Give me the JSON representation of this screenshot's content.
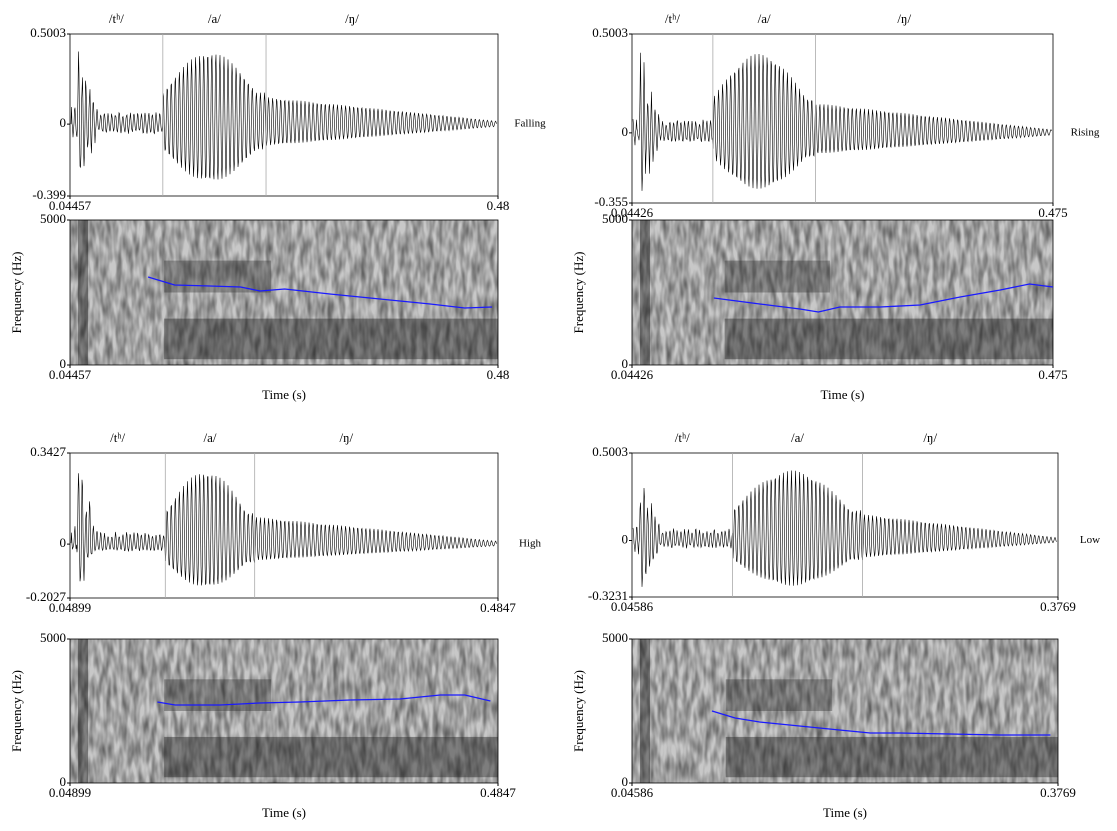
{
  "chart_data": [
    {
      "type": "waveform",
      "title": "Falling",
      "segments": [
        "/tʰ/",
        "/a/",
        "/ŋ/"
      ],
      "boundaries": [
        0.139,
        0.244
      ],
      "xlim": [
        0.04457,
        0.48
      ],
      "xticks": [
        0.04457,
        0.48
      ],
      "ylim": [
        -0.399,
        0.5003
      ],
      "yticks": [
        -0.399,
        0,
        0.5003
      ]
    },
    {
      "type": "spectrogram",
      "ylabel": "Frequency (Hz)",
      "xlabel": "Time (s)",
      "xlim": [
        0.04457,
        0.48
      ],
      "xticks": [
        0.04457,
        0.48
      ],
      "ylim": [
        0,
        5000
      ],
      "yticks": [
        0,
        5000
      ],
      "x": [
        0.124,
        0.151,
        0.187,
        0.218,
        0.238,
        0.263,
        0.309,
        0.36,
        0.411,
        0.446,
        0.474
      ],
      "series": [
        {
          "color": "#1a1aff",
          "values": [
            3034,
            2759,
            2724,
            2690,
            2552,
            2621,
            2448,
            2276,
            2103,
            1966,
            2000
          ]
        }
      ]
    },
    {
      "type": "waveform",
      "title": "Rising",
      "segments": [
        "/tʰ/",
        "/a/",
        "/ŋ/"
      ],
      "boundaries": [
        0.127,
        0.232
      ],
      "xlim": [
        0.04426,
        0.475
      ],
      "xticks": [
        0.04426,
        0.475
      ],
      "ylim": [
        -0.355,
        0.5003
      ],
      "yticks": [
        -0.355,
        0,
        0.5003
      ]
    },
    {
      "type": "spectrogram",
      "ylabel": "Frequency (Hz)",
      "xlabel": "Time (s)",
      "xlim": [
        0.04426,
        0.475
      ],
      "xticks": [
        0.04426,
        0.475
      ],
      "ylim": [
        0,
        5000
      ],
      "yticks": [
        0,
        5000
      ],
      "x": [
        0.128,
        0.175,
        0.216,
        0.235,
        0.257,
        0.298,
        0.339,
        0.38,
        0.421,
        0.451,
        0.475
      ],
      "series": [
        {
          "color": "#1a1aff",
          "values": [
            2310,
            2103,
            1931,
            1828,
            2000,
            2000,
            2069,
            2345,
            2586,
            2793,
            2690
          ]
        }
      ]
    },
    {
      "type": "waveform",
      "title": "High",
      "segments": [
        "/tʰ/",
        "/a/",
        "/ŋ/"
      ],
      "boundaries": [
        0.146,
        0.237
      ],
      "xlim": [
        0.04899,
        0.4847
      ],
      "xticks": [
        0.04899,
        0.4847
      ],
      "ylim": [
        -0.2027,
        0.3427
      ],
      "yticks": [
        -0.2027,
        0,
        0.3427
      ]
    },
    {
      "type": "spectrogram",
      "ylabel": "Frequency (Hz)",
      "xlabel": "Time (s)",
      "xlim": [
        0.04899,
        0.4847
      ],
      "xticks": [
        0.04899,
        0.4847
      ],
      "ylim": [
        0,
        5000
      ],
      "yticks": [
        0,
        5000
      ],
      "x": [
        0.138,
        0.156,
        0.202,
        0.242,
        0.283,
        0.334,
        0.385,
        0.426,
        0.451,
        0.477
      ],
      "series": [
        {
          "color": "#1a1aff",
          "values": [
            2813,
            2708,
            2708,
            2778,
            2813,
            2882,
            2917,
            3056,
            3056,
            2847
          ]
        }
      ]
    },
    {
      "type": "waveform",
      "title": "Low",
      "segments": [
        "/tʰ/",
        "/a/",
        "/ŋ/"
      ],
      "boundaries": [
        0.124,
        0.225
      ],
      "xlim": [
        0.04586,
        0.3769
      ],
      "xticks": [
        0.04586,
        0.3769
      ],
      "ylim": [
        -0.3231,
        0.5003
      ],
      "yticks": [
        -0.3231,
        0,
        0.5003
      ]
    },
    {
      "type": "spectrogram",
      "ylabel": "Frequency (Hz)",
      "xlabel": "Time (s)",
      "xlim": [
        0.04586,
        0.3769
      ],
      "xticks": [
        0.04586,
        0.3769
      ],
      "ylim": [
        0,
        5000
      ],
      "yticks": [
        0,
        5000
      ],
      "x": [
        0.108,
        0.126,
        0.145,
        0.176,
        0.207,
        0.231,
        0.254,
        0.293,
        0.332,
        0.371
      ],
      "series": [
        {
          "color": "#1a1aff",
          "values": [
            2500,
            2257,
            2118,
            1979,
            1840,
            1736,
            1736,
            1701,
            1667,
            1667
          ]
        }
      ]
    }
  ]
}
